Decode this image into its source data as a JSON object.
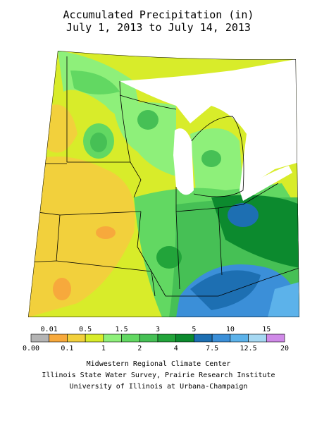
{
  "header": {
    "title": "Accumulated Precipitation (in)",
    "subtitle": "July 1, 2013 to July 14, 2013"
  },
  "legend": {
    "labels": [
      "0.00",
      "0.01",
      "0.1",
      "0.5",
      "1",
      "1.5",
      "2",
      "3",
      "4",
      "5",
      "7.5",
      "10",
      "12.5",
      "15",
      "20"
    ],
    "colors": [
      "#b4b4b4",
      "#f7a93c",
      "#f2d03c",
      "#d8ec2a",
      "#8ef07a",
      "#62d862",
      "#46c055",
      "#22a43a",
      "#0c8a2e",
      "#1d6fb2",
      "#3b8fd8",
      "#5cb2ea",
      "#a6d8f2",
      "#d08ae8"
    ]
  },
  "credits": [
    "Midwestern Regional Climate Center",
    "Illinois State Water Survey, Prairie Research Institute",
    "University of Illinois at Urbana-Champaign"
  ]
}
